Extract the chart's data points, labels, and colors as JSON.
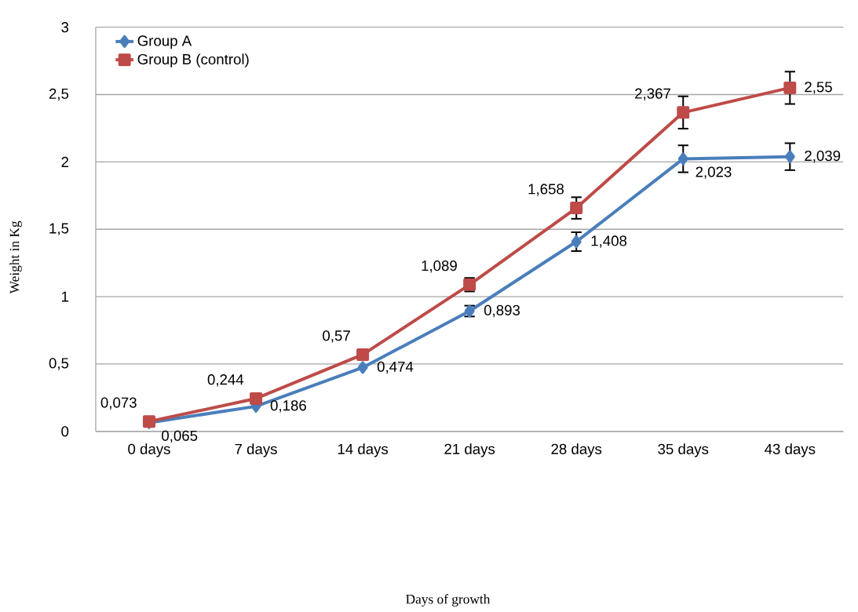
{
  "chart_data": {
    "type": "line",
    "annotations": [
      "Days of growth"
    ],
    "ylabel": "Weight in Kg",
    "categories": [
      "0 days",
      "7 days",
      "14 days",
      "21 days",
      "28 days",
      "35 days",
      "43 days"
    ],
    "series": [
      {
        "name": "Group A",
        "color": "#4a7ebb",
        "marker": "diamond",
        "values": [
          0.065,
          0.186,
          0.474,
          0.893,
          1.408,
          2.023,
          2.039
        ],
        "errors": [
          null,
          null,
          null,
          0.04,
          0.07,
          0.1,
          0.1
        ],
        "value_labels": [
          "0,065",
          "0,186",
          "0,474",
          "0,893",
          "1,408",
          "2,023",
          "2,039"
        ]
      },
      {
        "name": "Group B (control)",
        "color": "#be4b48",
        "marker": "square",
        "values": [
          0.073,
          0.244,
          0.57,
          1.089,
          1.658,
          2.367,
          2.55
        ],
        "errors": [
          null,
          null,
          null,
          0.05,
          0.08,
          0.12,
          0.12
        ],
        "value_labels": [
          "0,073",
          "0,244",
          "0,57",
          "1,089",
          "1,658",
          "2,367",
          "2,55"
        ]
      }
    ],
    "ylim": [
      0,
      3
    ],
    "yticks": [
      0,
      {
        "value": 0.5,
        "label": "0,5"
      },
      1,
      {
        "value": 1.5,
        "label": "1,5"
      },
      2,
      {
        "value": 2.5,
        "label": "2,5"
      },
      3
    ],
    "grid": "y",
    "legend": "top left",
    "line_style": "solid"
  }
}
